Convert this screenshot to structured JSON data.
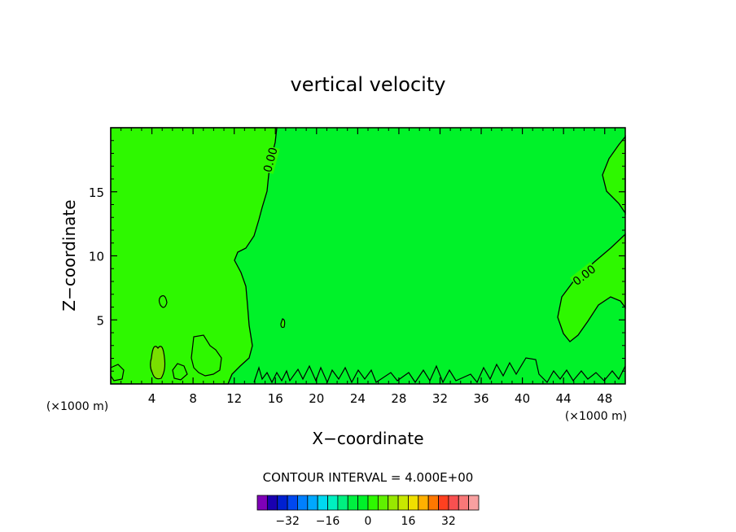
{
  "chart_data": {
    "type": "heatmap",
    "title": "vertical velocity",
    "xlabel": "X−coordinate",
    "ylabel": "Z−coordinate",
    "x_units": "(×1000 m)",
    "x_units_right": "(×1000 m)",
    "xlim": [
      0,
      50
    ],
    "ylim": [
      0,
      20
    ],
    "x_ticks": [
      4,
      8,
      12,
      16,
      20,
      24,
      28,
      32,
      36,
      40,
      44,
      48
    ],
    "x_tick_labels": [
      "4",
      "8",
      "12",
      "16",
      "20",
      "24",
      "28",
      "32",
      "36",
      "40",
      "44",
      "48"
    ],
    "y_ticks": [
      5,
      10,
      15
    ],
    "y_tick_labels": [
      "5",
      "10",
      "15"
    ],
    "contour_interval_text": "CONTOUR INTERVAL = 4.000E+00",
    "contour_labels": [
      {
        "text": "0.00",
        "x": 15.5,
        "y": 17.5
      },
      {
        "text": "0.00",
        "x": 46.0,
        "y": 8.5
      }
    ],
    "fill_colors": {
      "positive_region": "#2ef800",
      "zero_region": "#00f229",
      "updraft_cell": "#79e000"
    },
    "colorbar": {
      "colors": [
        "#7f00b8",
        "#1a00b0",
        "#0020d0",
        "#0048f0",
        "#0080ff",
        "#00a8ff",
        "#00d8f0",
        "#00f0c0",
        "#00f080",
        "#00f040",
        "#00f229",
        "#2ef800",
        "#60f000",
        "#98e800",
        "#c8e800",
        "#f0e000",
        "#ffb000",
        "#ff7800",
        "#ff4020",
        "#f85050",
        "#f87878",
        "#f8a0a0"
      ],
      "tick_labels": [
        "−32",
        "−16",
        "0",
        "16",
        "32"
      ],
      "tick_values": [
        -32,
        -16,
        0,
        16,
        32
      ],
      "min": -44,
      "max": 44
    }
  }
}
